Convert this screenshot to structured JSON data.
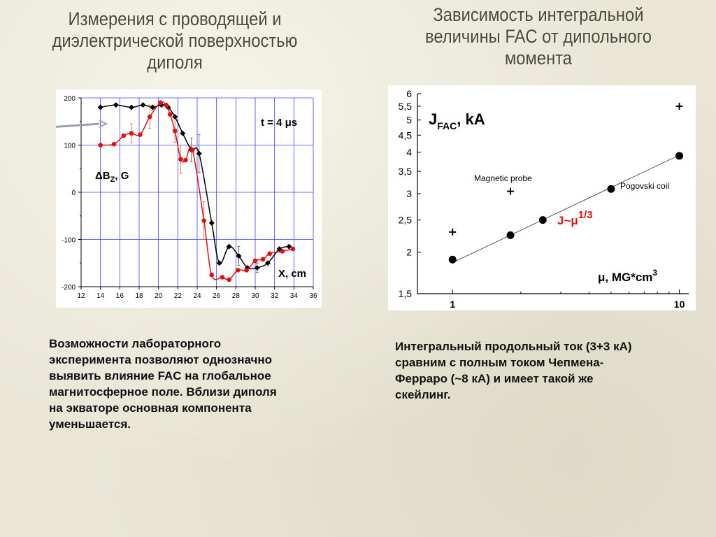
{
  "slide": {
    "title_left": "Измерения с проводящей и\nдиэлектрической поверхностью\nдиполя",
    "title_right": "Зависимость интегральной\nвеличины FAC от дипольного\nмомента",
    "text_left": "Возможности лабораторного\nэксперимента позволяют однозначно\nвыявить влияние FAC на глобальное\nмагнитосферное поле. Вблизи диполя\nна экваторе основная компонента\nуменьшается.",
    "text_right": "Интегральный продольный ток (3+3 кА)\nсравним с полным током Чепмена-\nФерраро (~8 кА) и имеет такой же\nскейлинг."
  },
  "chart_data": [
    {
      "type": "line",
      "title": "",
      "xlabel": "X, cm",
      "ylabel": "ΔBz, G",
      "ylabel_main": "ΔB",
      "ylabel_sub": "Z",
      "ylabel_rest": ", G",
      "annotation": "t = 4 μs",
      "xlim": [
        12,
        36
      ],
      "ylim": [
        -200,
        200
      ],
      "x_ticks": [
        "12",
        "14",
        "16",
        "18",
        "20",
        "22",
        "24",
        "26",
        "28",
        "30",
        "32",
        "34",
        "36"
      ],
      "y_ticks": [
        "200",
        "100",
        "0",
        "-100",
        "-200"
      ],
      "grid": true,
      "series": [
        {
          "color": "#000000",
          "marker": "diamond",
          "x": [
            14,
            15.6,
            17.2,
            18.4,
            19.4,
            20.3,
            21,
            21.7,
            22.5,
            23.4,
            24.2,
            25.5,
            26.3,
            27.3,
            28.3,
            29.2,
            30.2,
            31.3,
            32.5,
            33.5
          ],
          "y": [
            180,
            185,
            180,
            185,
            180,
            185,
            180,
            160,
            125,
            90,
            82,
            -65,
            -150,
            -115,
            -135,
            -160,
            -160,
            -150,
            -120,
            -115
          ],
          "errors": [
            0,
            0,
            0,
            0,
            0,
            0,
            0,
            0,
            0,
            25,
            40,
            0,
            0,
            0,
            20,
            0,
            10,
            0,
            0,
            0
          ]
        },
        {
          "color": "#e01010",
          "marker": "circle",
          "x": [
            14,
            15.4,
            16.4,
            17.2,
            18.1,
            19.1,
            20.2,
            20.8,
            21.2,
            21.7,
            22.3,
            22.8,
            23.5,
            24.7,
            25.5,
            26.6,
            27.3,
            28.2,
            29.1,
            30,
            30.8,
            31.5,
            32.8,
            33.9
          ],
          "y": [
            100,
            102,
            120,
            125,
            122,
            160,
            190,
            185,
            165,
            130,
            70,
            68,
            90,
            -60,
            -175,
            -180,
            -185,
            -165,
            -165,
            -145,
            -142,
            -130,
            -125,
            -120
          ],
          "errors": [
            0,
            0,
            0,
            20,
            0,
            25,
            0,
            0,
            0,
            25,
            30,
            0,
            0,
            40,
            0,
            0,
            0,
            0,
            0,
            0,
            0,
            0,
            0,
            0
          ]
        }
      ]
    },
    {
      "type": "scatter",
      "title": "",
      "xlabel": "μ, MG*cm3",
      "xlabel_main": "μ, MG*cm",
      "xlabel_sup": "3",
      "ylabel": "JFAC, kA",
      "ylabel_main": "J",
      "ylabel_sub": "FAC",
      "ylabel_rest": ", kA",
      "x_scale": "log",
      "y_scale": "log",
      "xlim": [
        0.7,
        11
      ],
      "ylim": [
        1.5,
        6
      ],
      "x_tick_labels": [
        "1",
        "10"
      ],
      "y_ticks": [
        "6",
        "5,5",
        "5",
        "4,5",
        "4",
        "3,5",
        "3",
        "2,5",
        "2",
        "1,5"
      ],
      "grid": false,
      "annotations": [
        "Magnetic probe",
        "Pogovski coil"
      ],
      "fit_label": "J~μ",
      "fit_exp": "1/3",
      "series": [
        {
          "name": "Pogovski coil",
          "marker": "circle",
          "color": "#000000",
          "x": [
            1,
            1.8,
            2.5,
            5,
            10
          ],
          "y": [
            1.9,
            2.25,
            2.5,
            3.1,
            3.9
          ]
        },
        {
          "name": "Magnetic probe",
          "marker": "plus",
          "color": "#000000",
          "x": [
            1,
            1.8,
            10
          ],
          "y": [
            2.3,
            3.05,
            5.5
          ]
        }
      ],
      "fit_line": {
        "x": [
          1,
          10
        ],
        "y": [
          1.86,
          3.92
        ]
      }
    }
  ]
}
